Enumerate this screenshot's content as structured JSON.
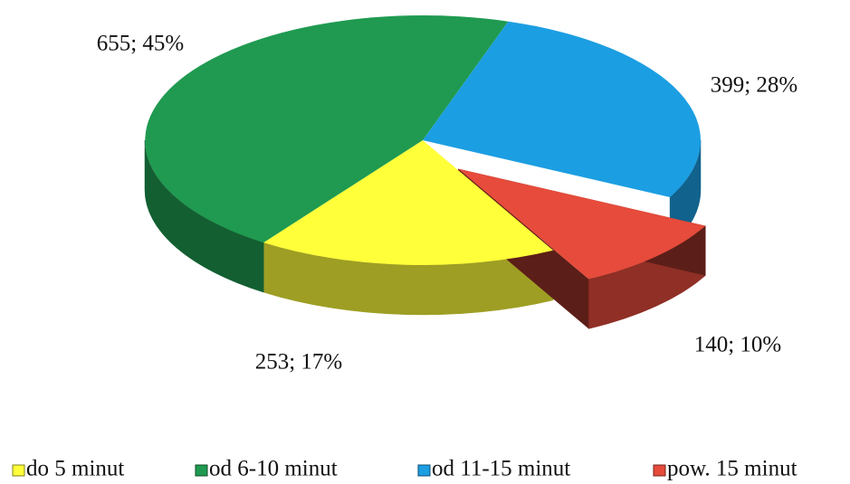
{
  "chart_data": {
    "type": "pie",
    "categories": [
      "do 5 minut",
      "od 6-10 minut",
      "od 11-15 minut",
      "pow. 15 minut"
    ],
    "values": [
      253,
      655,
      399,
      140
    ],
    "value_labels": [
      "253; 17%",
      "655; 45%",
      "399; 28%",
      "140; 10%"
    ],
    "colors": [
      "#ffff3a",
      "#1f9a50",
      "#1c9ee2",
      "#e64b3b"
    ],
    "exploded": [
      "pow. 15 minut"
    ],
    "legend": "bottom"
  }
}
